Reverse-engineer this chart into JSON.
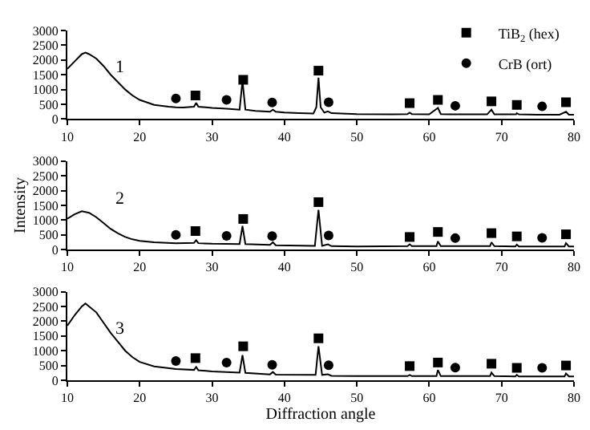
{
  "chart_data": [
    {
      "type": "line",
      "xlim": [
        10,
        80
      ],
      "xticks": [
        10,
        20,
        30,
        40,
        50,
        60,
        70,
        80
      ],
      "ylim": [
        0,
        3000
      ],
      "yticks": [
        0,
        500,
        1000,
        1500,
        2000,
        2500,
        3000
      ],
      "legend": "top right",
      "annotations": [
        "1"
      ],
      "series": [
        {
          "color": "#000000",
          "x": [
            10,
            11,
            12,
            12.5,
            13,
            14,
            15,
            16,
            17,
            18,
            19,
            20,
            22,
            24,
            25,
            26,
            27.5,
            27.8,
            28.1,
            30,
            32,
            33.8,
            34.2,
            34.6,
            36,
            38,
            38.4,
            38.8,
            40,
            42,
            44,
            44.4,
            44.7,
            45,
            45.5,
            46,
            46.5,
            50,
            55,
            57,
            57.3,
            57.6,
            60,
            61.2,
            61.6,
            63,
            65,
            68,
            68.6,
            69,
            72,
            72.1,
            72.4,
            75,
            78,
            78.9,
            79.3,
            80
          ],
          "values": [
            1700,
            1950,
            2200,
            2250,
            2200,
            2050,
            1800,
            1500,
            1250,
            1000,
            800,
            650,
            480,
            420,
            400,
            390,
            420,
            550,
            420,
            380,
            350,
            320,
            1300,
            320,
            280,
            250,
            320,
            250,
            220,
            200,
            190,
            400,
            1400,
            400,
            220,
            260,
            200,
            170,
            160,
            170,
            220,
            170,
            160,
            380,
            170,
            160,
            160,
            160,
            320,
            160,
            160,
            200,
            160,
            150,
            150,
            250,
            150,
            150
          ]
        },
        {
          "name": "TiB$_{2}$ (hex)",
          "type": "scatter",
          "marker": "square",
          "color": "#000000",
          "x": [
            27.7,
            34.3,
            44.7,
            57.3,
            61.2,
            68.6,
            72.1,
            78.9
          ],
          "values": [
            800,
            1330,
            1640,
            540,
            650,
            600,
            480,
            570
          ]
        },
        {
          "name": "CrB (ort)",
          "type": "scatter",
          "marker": "circle",
          "color": "#000000",
          "x": [
            25,
            32,
            38.3,
            46.1,
            63.6,
            75.6
          ],
          "values": [
            700,
            650,
            560,
            570,
            450,
            430
          ]
        }
      ]
    },
    {
      "type": "line",
      "xlim": [
        10,
        80
      ],
      "xticks": [
        10,
        20,
        30,
        40,
        50,
        60,
        70,
        80
      ],
      "ylim": [
        0,
        3000
      ],
      "yticks": [
        0,
        500,
        1000,
        1500,
        2000,
        2500,
        3000
      ],
      "ylabel": "Intensity",
      "annotations": [
        "2"
      ],
      "series": [
        {
          "color": "#000000",
          "x": [
            10,
            11,
            12,
            13,
            14,
            15,
            16,
            17,
            18,
            19,
            20,
            22,
            25,
            27.5,
            27.8,
            28.1,
            30,
            33.8,
            34.2,
            34.6,
            38,
            38.4,
            38.8,
            44.2,
            44.7,
            45.2,
            46,
            46.5,
            50,
            57,
            57.3,
            57.6,
            61,
            61.2,
            61.6,
            65,
            68.4,
            68.6,
            69,
            71.9,
            72.1,
            72.4,
            78.7,
            78.9,
            79.3,
            80
          ],
          "values": [
            1050,
            1200,
            1300,
            1250,
            1100,
            900,
            700,
            550,
            430,
            350,
            300,
            250,
            220,
            230,
            320,
            220,
            200,
            190,
            800,
            190,
            160,
            250,
            150,
            130,
            1350,
            130,
            180,
            120,
            110,
            120,
            180,
            120,
            120,
            280,
            120,
            120,
            120,
            250,
            120,
            110,
            170,
            110,
            110,
            220,
            110,
            110
          ]
        },
        {
          "type": "scatter",
          "marker": "square",
          "color": "#000000",
          "x": [
            27.7,
            34.3,
            44.7,
            57.3,
            61.2,
            68.6,
            72.1,
            78.9
          ],
          "values": [
            630,
            1040,
            1610,
            430,
            600,
            560,
            450,
            520
          ]
        },
        {
          "type": "scatter",
          "marker": "circle",
          "color": "#000000",
          "x": [
            25,
            32,
            38.3,
            46.1,
            63.6,
            75.6
          ],
          "values": [
            500,
            470,
            460,
            480,
            390,
            400
          ]
        }
      ]
    },
    {
      "type": "line",
      "xlim": [
        10,
        80
      ],
      "xticks": [
        10,
        20,
        30,
        40,
        50,
        60,
        70,
        80
      ],
      "ylim": [
        0,
        3000
      ],
      "yticks": [
        0,
        500,
        1000,
        1500,
        2000,
        2500,
        3000
      ],
      "xlabel": "Diffraction angle",
      "annotations": [
        "3"
      ],
      "series": [
        {
          "color": "#000000",
          "x": [
            10,
            11,
            12,
            12.5,
            13,
            14,
            15,
            16,
            17,
            18,
            19,
            20,
            22,
            25,
            27.5,
            27.8,
            28.1,
            30,
            33.8,
            34.2,
            34.6,
            38,
            38.4,
            38.8,
            44.3,
            44.7,
            45.2,
            46,
            46.5,
            50,
            57,
            57.3,
            57.6,
            61,
            61.2,
            61.6,
            65,
            68.4,
            68.6,
            69,
            71.9,
            72.1,
            72.4,
            78.7,
            78.9,
            79.3,
            80
          ],
          "values": [
            1850,
            2200,
            2500,
            2600,
            2500,
            2300,
            1950,
            1600,
            1300,
            1000,
            780,
            620,
            470,
            380,
            350,
            450,
            340,
            300,
            260,
            850,
            250,
            200,
            280,
            190,
            180,
            1150,
            180,
            200,
            150,
            140,
            140,
            180,
            140,
            140,
            350,
            140,
            140,
            140,
            260,
            140,
            130,
            180,
            130,
            130,
            230,
            130,
            130
          ]
        },
        {
          "type": "scatter",
          "marker": "square",
          "color": "#000000",
          "x": [
            27.7,
            34.3,
            44.7,
            57.3,
            61.2,
            68.6,
            72.1,
            78.9
          ],
          "values": [
            750,
            1150,
            1420,
            480,
            600,
            560,
            420,
            500
          ]
        },
        {
          "type": "scatter",
          "marker": "circle",
          "color": "#000000",
          "x": [
            25,
            32,
            38.3,
            46.1,
            63.6,
            75.6
          ],
          "values": [
            650,
            600,
            520,
            510,
            430,
            420
          ]
        }
      ]
    }
  ]
}
